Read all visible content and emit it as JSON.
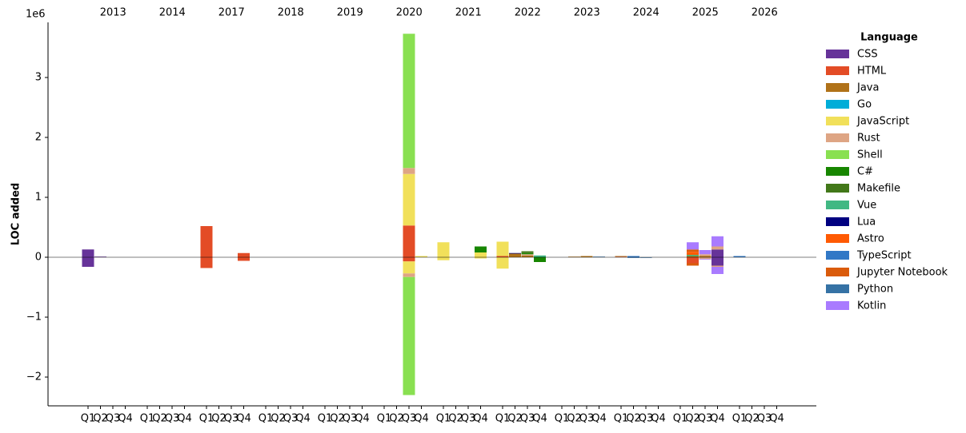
{
  "chart_data": {
    "type": "stacked_bar",
    "y_label": "LOC added",
    "y_offset_label": "1e6",
    "legend_title": "Language",
    "legend_position": "outside right",
    "groups": [
      "2013",
      "2014",
      "2017",
      "2018",
      "2019",
      "2020",
      "2021",
      "2022",
      "2023",
      "2024",
      "2025",
      "2026"
    ],
    "categories": [
      "Q1",
      "Q2",
      "Q3",
      "Q4",
      "Q1",
      "Q2",
      "Q3",
      "Q4",
      "Q1",
      "Q2",
      "Q3",
      "Q4",
      "Q1",
      "Q2",
      "Q3",
      "Q4",
      "Q1",
      "Q2",
      "Q3",
      "Q4",
      "Q1",
      "Q2",
      "Q3",
      "Q4",
      "Q1",
      "Q2",
      "Q3",
      "Q4",
      "Q1",
      "Q2",
      "Q3",
      "Q4",
      "Q1",
      "Q2",
      "Q3",
      "Q4",
      "Q1",
      "Q2",
      "Q3",
      "Q4",
      "Q1",
      "Q2",
      "Q3",
      "Q4",
      "Q1",
      "Q2",
      "Q3",
      "Q4"
    ],
    "ylim": [
      -2.48,
      3.92
    ],
    "yticks": [
      {
        "value": -2,
        "label": "−2"
      },
      {
        "value": -1,
        "label": "−1"
      },
      0,
      1,
      2,
      3
    ],
    "series": [
      {
        "name": "CSS",
        "color": "#663399",
        "x": [
          0,
          0,
          1,
          43,
          43
        ],
        "values": [
          0.13,
          -0.16,
          0.01,
          0.13,
          -0.14
        ]
      },
      {
        "name": "HTML",
        "color": "#e34c26",
        "x": [
          8,
          8,
          11,
          11,
          22,
          22,
          28,
          36,
          41
        ],
        "values": [
          0.52,
          -0.18,
          0.07,
          -0.06,
          0.53,
          -0.07,
          0.02,
          0.01,
          -0.1
        ]
      },
      {
        "name": "Java",
        "color": "#b07219",
        "x": [
          29,
          30,
          33,
          34,
          36,
          41,
          42
        ],
        "values": [
          0.06,
          0.03,
          0.01,
          0.02,
          0.01,
          0.02,
          0.02
        ]
      },
      {
        "name": "Go",
        "color": "#00add8",
        "x": [],
        "values": []
      },
      {
        "name": "JavaScript",
        "color": "#f1e05a",
        "x": [
          22,
          22,
          23,
          24,
          24,
          27,
          27,
          28,
          28
        ],
        "values": [
          0.86,
          -0.2,
          0.02,
          0.25,
          -0.05,
          0.08,
          -0.02,
          0.24,
          -0.19
        ]
      },
      {
        "name": "Rust",
        "color": "#dea584",
        "x": [
          22,
          22,
          30,
          42,
          42,
          43,
          43
        ],
        "values": [
          0.1,
          -0.06,
          0.02,
          0.03,
          -0.03,
          0.05,
          -0.02
        ]
      },
      {
        "name": "Shell",
        "color": "#89e051",
        "x": [
          22,
          22
        ],
        "values": [
          2.24,
          -1.97
        ]
      },
      {
        "name": "C#",
        "color": "#178600",
        "x": [
          27,
          30,
          31
        ],
        "values": [
          0.1,
          0.02,
          -0.08
        ]
      },
      {
        "name": "Makefile",
        "color": "#427819",
        "x": [
          30
        ],
        "values": [
          0.03
        ]
      },
      {
        "name": "Vue",
        "color": "#41b883",
        "x": [
          31,
          41
        ],
        "values": [
          0.03,
          0.02
        ]
      },
      {
        "name": "Lua",
        "color": "#000080",
        "x": [
          29
        ],
        "values": [
          0.01
        ]
      },
      {
        "name": "Astro",
        "color": "#ff5a03",
        "x": [
          41
        ],
        "values": [
          0.05
        ]
      },
      {
        "name": "TypeScript",
        "color": "#3178c6",
        "x": [
          37,
          37,
          44
        ],
        "values": [
          0.02,
          -0.01,
          0.02
        ]
      },
      {
        "name": "Jupyter Notebook",
        "color": "#da5b0b",
        "x": [
          41,
          41
        ],
        "values": [
          0.04,
          -0.04
        ]
      },
      {
        "name": "Python",
        "color": "#3572a5",
        "x": [
          35,
          38
        ],
        "values": [
          0.01,
          -0.01
        ]
      },
      {
        "name": "Kotlin",
        "color": "#a97bff",
        "x": [
          41,
          42,
          42,
          43,
          43
        ],
        "values": [
          0.12,
          0.07,
          -0.01,
          0.17,
          -0.12
        ]
      }
    ]
  }
}
